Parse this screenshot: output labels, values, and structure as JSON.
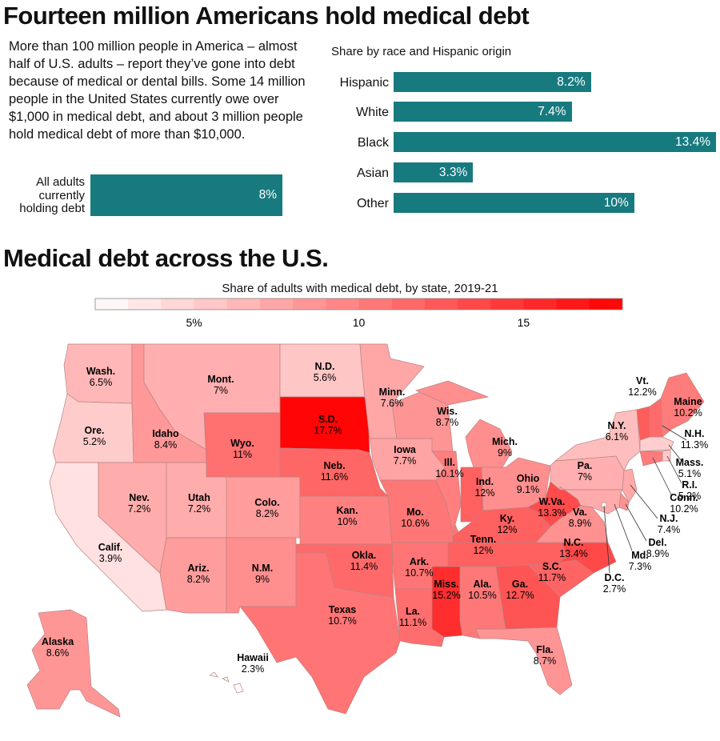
{
  "title": "Fourteen million Americans hold medical debt",
  "intro": "More than 100 million people in America – almost half of U.S. adults – report they’ve gone into debt because of medical or dental bills. Some 14 million people in the United States currently owe over $1,000 in medical debt, and about 3 million people hold medical debt of more than $10,000.",
  "map_title": "Medical debt across the U.S.",
  "colors": {
    "teal": "#177a7f",
    "scale_low": "#ffffff",
    "scale_high": "#ff0000",
    "state_border": "#b98383"
  },
  "chart_data": [
    {
      "type": "bar",
      "orientation": "horizontal",
      "title": "",
      "categories": [
        "All adults currently holding debt"
      ],
      "values": [
        8
      ],
      "value_labels": [
        "8%"
      ],
      "xlim": [
        0,
        13.4
      ]
    },
    {
      "type": "bar",
      "orientation": "horizontal",
      "title": "Share by race and Hispanic origin",
      "categories": [
        "Hispanic",
        "White",
        "Black",
        "Asian",
        "Other"
      ],
      "values": [
        8.2,
        7.4,
        13.4,
        3.3,
        10
      ],
      "value_labels": [
        "8.2%",
        "7.4%",
        "13.4%",
        "3.3%",
        "10%"
      ],
      "xlim": [
        0,
        13.4
      ]
    },
    {
      "type": "choropleth",
      "title": "Share of adults with medical debt, by state, 2019-21",
      "scale": {
        "min": 2,
        "max": 18,
        "steps": 16,
        "ticks": [
          5,
          10,
          15
        ],
        "tick_labels": [
          "5%",
          "10",
          "15"
        ]
      },
      "regions": [
        {
          "abbr": "Wash.",
          "value": 6.5,
          "label": "6.5%"
        },
        {
          "abbr": "Ore.",
          "value": 5.2,
          "label": "5.2%"
        },
        {
          "abbr": "Calif.",
          "value": 3.9,
          "label": "3.9%"
        },
        {
          "abbr": "Idaho",
          "value": 8.4,
          "label": "8.4%"
        },
        {
          "abbr": "Nev.",
          "value": 7.2,
          "label": "7.2%"
        },
        {
          "abbr": "Mont.",
          "value": 7,
          "label": "7%"
        },
        {
          "abbr": "Wyo.",
          "value": 11,
          "label": "11%"
        },
        {
          "abbr": "Utah",
          "value": 7.2,
          "label": "7.2%"
        },
        {
          "abbr": "Ariz.",
          "value": 8.2,
          "label": "8.2%"
        },
        {
          "abbr": "Colo.",
          "value": 8.2,
          "label": "8.2%"
        },
        {
          "abbr": "N.M.",
          "value": 9,
          "label": "9%"
        },
        {
          "abbr": "N.D.",
          "value": 5.6,
          "label": "5.6%"
        },
        {
          "abbr": "S.D.",
          "value": 17.7,
          "label": "17.7%"
        },
        {
          "abbr": "Neb.",
          "value": 11.6,
          "label": "11.6%"
        },
        {
          "abbr": "Kan.",
          "value": 10,
          "label": "10%"
        },
        {
          "abbr": "Okla.",
          "value": 11.4,
          "label": "11.4%"
        },
        {
          "abbr": "Texas",
          "value": 10.7,
          "label": "10.7%"
        },
        {
          "abbr": "Minn.",
          "value": 7.6,
          "label": "7.6%"
        },
        {
          "abbr": "Iowa",
          "value": 7.7,
          "label": "7.7%"
        },
        {
          "abbr": "Mo.",
          "value": 10.6,
          "label": "10.6%"
        },
        {
          "abbr": "Ark.",
          "value": 10.7,
          "label": "10.7%"
        },
        {
          "abbr": "La.",
          "value": 11.1,
          "label": "11.1%"
        },
        {
          "abbr": "Wis.",
          "value": 8.7,
          "label": "8.7%"
        },
        {
          "abbr": "Ill.",
          "value": 10.1,
          "label": "10.1%"
        },
        {
          "abbr": "Mich.",
          "value": 9,
          "label": "9%"
        },
        {
          "abbr": "Ind.",
          "value": 12,
          "label": "12%"
        },
        {
          "abbr": "Ohio",
          "value": 9.1,
          "label": "9.1%"
        },
        {
          "abbr": "Ky.",
          "value": 12,
          "label": "12%"
        },
        {
          "abbr": "Tenn.",
          "value": 12,
          "label": "12%"
        },
        {
          "abbr": "Miss.",
          "value": 15.2,
          "label": "15.2%"
        },
        {
          "abbr": "Ala.",
          "value": 10.5,
          "label": "10.5%"
        },
        {
          "abbr": "Ga.",
          "value": 12.7,
          "label": "12.7%"
        },
        {
          "abbr": "Fla.",
          "value": 8.7,
          "label": "8.7%"
        },
        {
          "abbr": "S.C.",
          "value": 11.7,
          "label": "11.7%"
        },
        {
          "abbr": "N.C.",
          "value": 13.4,
          "label": "13.4%"
        },
        {
          "abbr": "Va.",
          "value": 8.9,
          "label": "8.9%"
        },
        {
          "abbr": "W.Va.",
          "value": 13.3,
          "label": "13.3%"
        },
        {
          "abbr": "Pa.",
          "value": 7,
          "label": "7%"
        },
        {
          "abbr": "N.Y.",
          "value": 6.1,
          "label": "6.1%"
        },
        {
          "abbr": "Vt.",
          "value": 12.2,
          "label": "12.2%"
        },
        {
          "abbr": "Maine",
          "value": 10.2,
          "label": "10.2%"
        },
        {
          "abbr": "N.H.",
          "value": 11.3,
          "label": "11.3%"
        },
        {
          "abbr": "Mass.",
          "value": 5.1,
          "label": "5.1%"
        },
        {
          "abbr": "R.I.",
          "value": 5.2,
          "label": "5.2%"
        },
        {
          "abbr": "Conn.",
          "value": 10.2,
          "label": "10.2%"
        },
        {
          "abbr": "N.J.",
          "value": 7.4,
          "label": "7.4%"
        },
        {
          "abbr": "Del.",
          "value": 8.9,
          "label": "8.9%"
        },
        {
          "abbr": "Md.",
          "value": 7.3,
          "label": "7.3%"
        },
        {
          "abbr": "D.C.",
          "value": 2.7,
          "label": "2.7%"
        },
        {
          "abbr": "Alaska",
          "value": 8.6,
          "label": "8.6%"
        },
        {
          "abbr": "Hawaii",
          "value": 2.3,
          "label": "2.3%"
        }
      ]
    }
  ]
}
